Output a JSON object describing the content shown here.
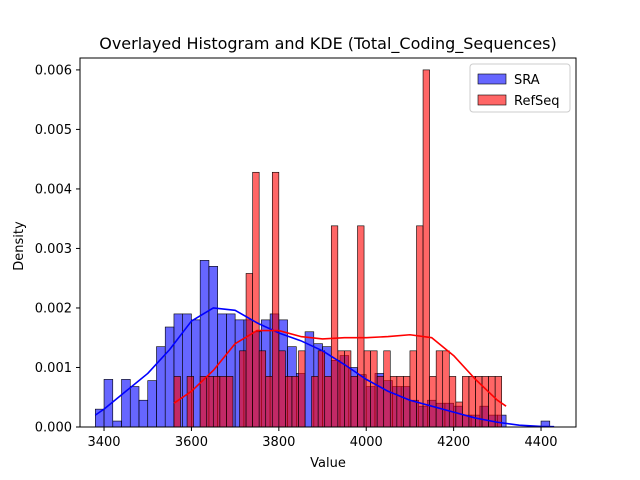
{
  "chart_data": {
    "type": "bar",
    "title": "Overlayed Histogram and KDE (Total_Coding_Sequences)",
    "xlabel": "Value",
    "ylabel": "Density",
    "xlim": [
      3345,
      4480
    ],
    "ylim": [
      0,
      0.0062
    ],
    "xticks": [
      3400,
      3600,
      3800,
      4000,
      4200,
      4400
    ],
    "yticks": [
      0.0,
      0.001,
      0.002,
      0.003,
      0.004,
      0.005,
      0.006
    ],
    "ytick_labels": [
      "0.000",
      "0.001",
      "0.002",
      "0.003",
      "0.004",
      "0.005",
      "0.006"
    ],
    "grid": false,
    "legend_position": "top-right",
    "series": [
      {
        "name": "SRA",
        "color": "#0000ff",
        "bin_edges": [
          3380,
          3400,
          3420,
          3440,
          3460,
          3480,
          3500,
          3520,
          3540,
          3560,
          3580,
          3600,
          3620,
          3640,
          3660,
          3680,
          3700,
          3720,
          3740,
          3760,
          3780,
          3800,
          3820,
          3840,
          3860,
          3880,
          3900,
          3920,
          3940,
          3960,
          3980,
          4000,
          4020,
          4040,
          4060,
          4080,
          4100,
          4120,
          4140,
          4160,
          4180,
          4200,
          4220,
          4240,
          4260,
          4280,
          4300,
          4320,
          4340,
          4360,
          4380,
          4400,
          4420
        ],
        "values": [
          0.0003,
          0.0008,
          0.0001,
          0.0008,
          0.00068,
          0.00045,
          0.00078,
          0.00135,
          0.00168,
          0.0019,
          0.0019,
          0.0018,
          0.0028,
          0.0027,
          0.0019,
          0.0019,
          0.0018,
          0.0018,
          0.0016,
          0.0018,
          0.0019,
          0.0018,
          0.00135,
          0.0009,
          0.0016,
          0.0014,
          0.00135,
          0.00112,
          0.0012,
          0.001,
          0.00088,
          0.00068,
          0.0009,
          0.00078,
          0.00068,
          0.00068,
          0.00045,
          0.00035,
          0.00045,
          0.0004,
          0.0004,
          0.00035,
          0.0002,
          0.0002,
          0.00035,
          0.0002,
          0.0002,
          0,
          0,
          0,
          0,
          0.0001
        ],
        "kde_x": [
          3380,
          3400,
          3450,
          3500,
          3550,
          3600,
          3650,
          3700,
          3750,
          3800,
          3850,
          3900,
          3950,
          4000,
          4050,
          4100,
          4150,
          4200,
          4250,
          4300,
          4350,
          4400,
          4430
        ],
        "kde_y": [
          0.0002,
          0.0003,
          0.0006,
          0.0009,
          0.0013,
          0.00178,
          0.002,
          0.00196,
          0.00175,
          0.00158,
          0.00145,
          0.00128,
          0.00105,
          0.0008,
          0.0006,
          0.00045,
          0.00035,
          0.00025,
          0.00015,
          8e-05,
          3e-05,
          1e-05,
          5e-06
        ]
      },
      {
        "name": "RefSeq",
        "color": "#ff0000",
        "bin_edges": [
          3560,
          3575,
          3590,
          3605,
          3620,
          3635,
          3650,
          3665,
          3680,
          3695,
          3710,
          3725,
          3740,
          3755,
          3770,
          3785,
          3800,
          3815,
          3830,
          3845,
          3860,
          3875,
          3890,
          3905,
          3920,
          3935,
          3950,
          3965,
          3980,
          3995,
          4010,
          4025,
          4040,
          4055,
          4070,
          4085,
          4100,
          4115,
          4130,
          4145,
          4160,
          4175,
          4190,
          4205,
          4220,
          4235,
          4250,
          4265,
          4280,
          4295,
          4310
        ],
        "values": [
          0.00085,
          0,
          0.00085,
          0,
          0.00085,
          0.00085,
          0.00085,
          0.00085,
          0.00085,
          0,
          0.00128,
          0.00258,
          0.00428,
          0.00128,
          0.00085,
          0.00428,
          0.00128,
          0.00085,
          0.00085,
          0.00128,
          0,
          0.00085,
          0.00128,
          0.00085,
          0.00338,
          0.00128,
          0.00128,
          0.00085,
          0.00338,
          0.00128,
          0.00128,
          0.00085,
          0.00128,
          0.00085,
          0.00085,
          0.00085,
          0.00128,
          0.00338,
          0.006,
          0.00085,
          0.00128,
          0.00128,
          0.00085,
          0.00042,
          0.00085,
          0.00085,
          0.00085,
          0.00085,
          0.00085,
          0.00085
        ],
        "kde_x": [
          3560,
          3600,
          3650,
          3700,
          3750,
          3800,
          3850,
          3900,
          3950,
          4000,
          4050,
          4100,
          4150,
          4200,
          4250,
          4300,
          4320
        ],
        "kde_y": [
          0.0004,
          0.0006,
          0.00095,
          0.0014,
          0.00162,
          0.00162,
          0.00152,
          0.00148,
          0.0015,
          0.0015,
          0.00152,
          0.00155,
          0.0015,
          0.0012,
          0.0008,
          0.00045,
          0.00035
        ]
      }
    ]
  }
}
